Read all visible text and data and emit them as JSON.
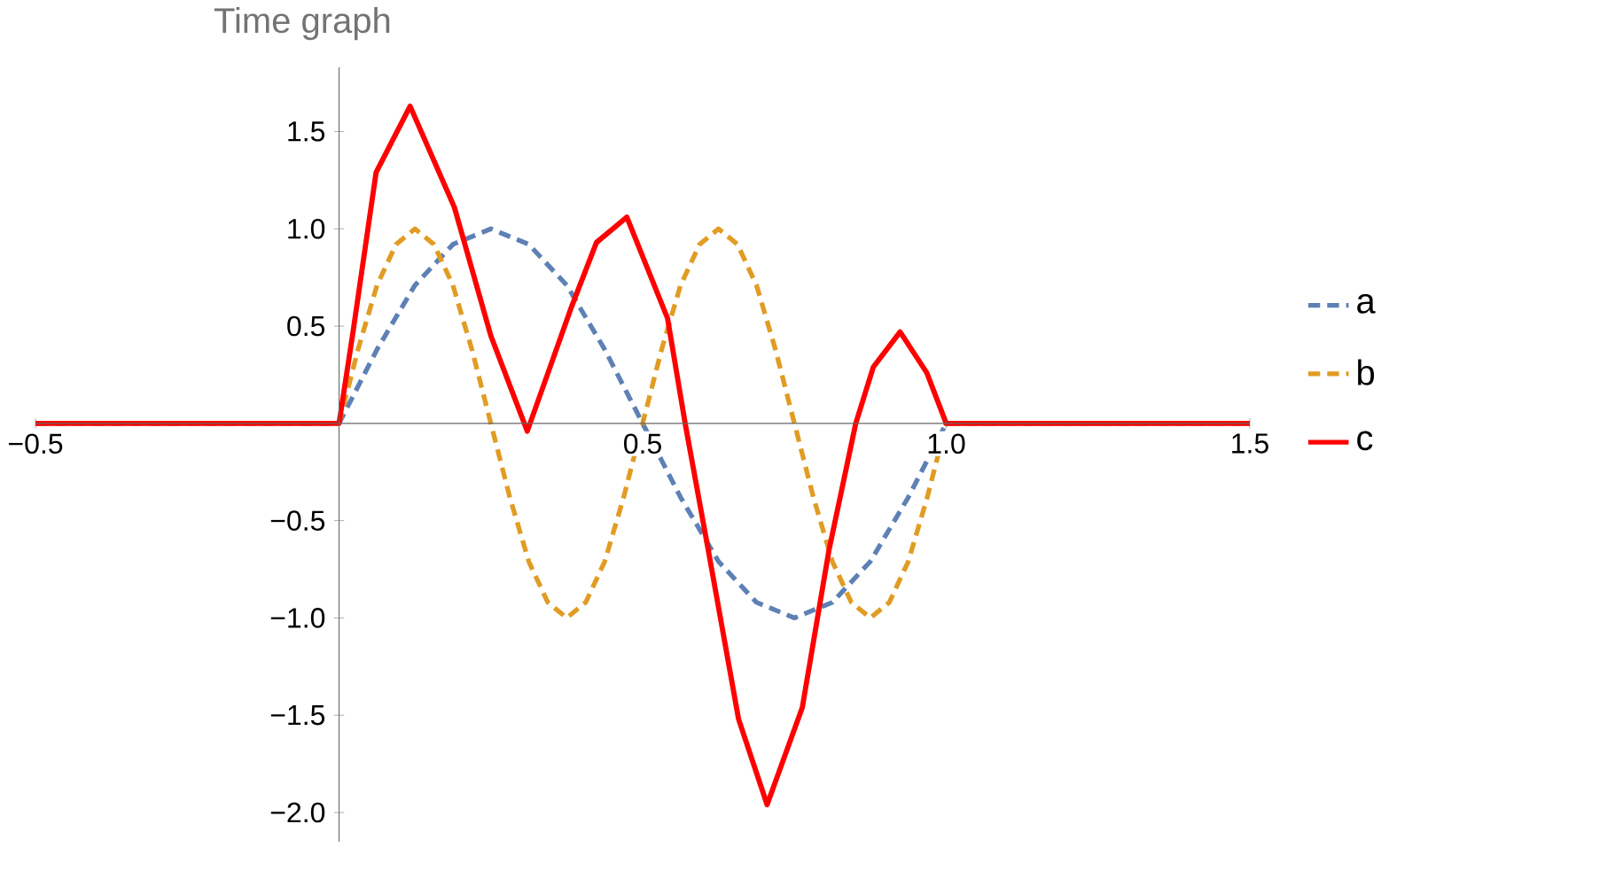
{
  "chart_data": {
    "type": "line",
    "title": "Time graph",
    "series": [
      {
        "name": "a",
        "color": "#5e81b5",
        "line_style": "dashed",
        "x": [
          -0.5,
          0,
          0.0625,
          0.125,
          0.1875,
          0.25,
          0.3125,
          0.375,
          0.4375,
          0.5,
          0.5625,
          0.625,
          0.6875,
          0.75,
          0.8125,
          0.875,
          0.9375,
          1,
          1.5
        ],
        "values": [
          0,
          0,
          0.38,
          0.71,
          0.92,
          1,
          0.92,
          0.71,
          0.38,
          0,
          -0.38,
          -0.71,
          -0.92,
          -1,
          -0.92,
          -0.71,
          -0.38,
          0,
          0
        ]
      },
      {
        "name": "b",
        "color": "#e19c24",
        "line_style": "dashed",
        "x": [
          -0.5,
          0,
          0.03125,
          0.0625,
          0.09375,
          0.125,
          0.15625,
          0.1875,
          0.21875,
          0.25,
          0.28125,
          0.3125,
          0.34375,
          0.375,
          0.40625,
          0.4375,
          0.46875,
          0.5,
          0.53125,
          0.5625,
          0.59375,
          0.625,
          0.65625,
          0.6875,
          0.71875,
          0.75,
          0.78125,
          0.8125,
          0.84375,
          0.875,
          0.90625,
          0.9375,
          0.96875,
          1,
          1.5
        ],
        "values": [
          0,
          0,
          0.38,
          0.71,
          0.92,
          1,
          0.92,
          0.71,
          0.38,
          0,
          -0.38,
          -0.71,
          -0.92,
          -1,
          -0.92,
          -0.71,
          -0.38,
          0,
          0.38,
          0.71,
          0.92,
          1,
          0.92,
          0.71,
          0.38,
          0,
          -0.38,
          -0.71,
          -0.92,
          -1,
          -0.92,
          -0.71,
          -0.38,
          0,
          0
        ]
      },
      {
        "name": "c",
        "color": "#ff0000",
        "line_style": "solid",
        "x": [
          -0.5,
          0,
          0.023,
          0.061,
          0.117,
          0.19,
          0.25,
          0.31,
          0.383,
          0.424,
          0.474,
          0.541,
          0.57,
          0.608,
          0.658,
          0.705,
          0.763,
          0.807,
          0.851,
          0.88,
          0.924,
          0.968,
          1,
          1.5
        ],
        "values": [
          0,
          0,
          0.47,
          1.29,
          1.63,
          1.11,
          0.45,
          -0.04,
          0.6,
          0.93,
          1.06,
          0.54,
          0,
          -0.65,
          -1.52,
          -1.96,
          -1.46,
          -0.65,
          0,
          0.29,
          0.47,
          0.26,
          0,
          0
        ]
      }
    ],
    "xlim": [
      -0.5,
      1.5
    ],
    "ylim": [
      -2.15,
      1.83
    ],
    "xticks": [
      {
        "value": -0.5,
        "label": "−0.5"
      },
      0.5,
      {
        "value": 1,
        "label": "1.0"
      },
      1.5
    ],
    "yticks": [
      {
        "value": -2,
        "label": "−2.0"
      },
      {
        "value": -1.5,
        "label": "−1.5"
      },
      {
        "value": -1,
        "label": "−1.0"
      },
      {
        "value": -0.5,
        "label": "−0.5"
      },
      0.5,
      {
        "value": 1,
        "label": "1.0"
      },
      1.5
    ],
    "grid": false,
    "legend": "right",
    "marker": "none"
  }
}
